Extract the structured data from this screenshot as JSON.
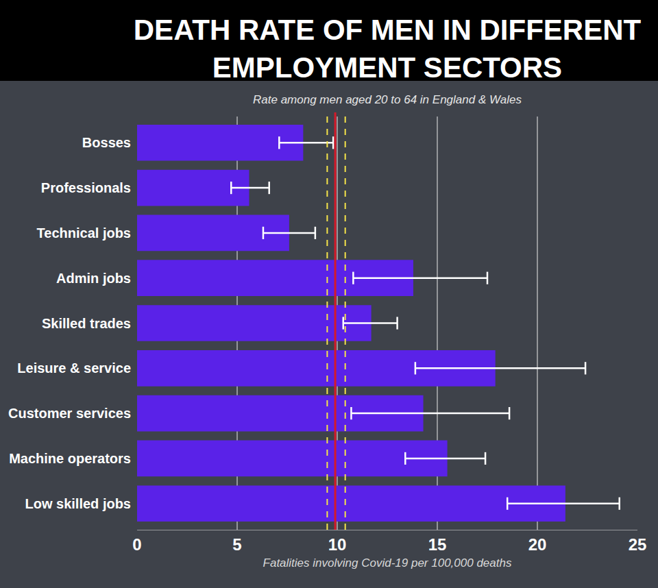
{
  "chart_data": {
    "type": "bar",
    "title": "DEATH RATE OF MEN IN DIFFERENT\nEMPLOYMENT SECTORS",
    "subtitle": "Rate among men aged 20 to 64 in England & Wales",
    "x_label": "Fatalities involving Covid-19 per 100,000 deaths",
    "orientation": "horizontal",
    "categories": [
      "Bosses",
      "Professionals",
      "Technical jobs",
      "Admin jobs",
      "Skilled trades",
      "Leisure & service",
      "Customer services",
      "Machine operators",
      "Low skilled jobs"
    ],
    "values": [
      8.3,
      5.6,
      7.6,
      13.8,
      11.7,
      17.9,
      14.3,
      15.5,
      21.4
    ],
    "ci_lower": [
      7.1,
      4.7,
      6.3,
      10.8,
      10.3,
      13.9,
      10.7,
      13.4,
      18.5
    ],
    "ci_upper": [
      9.8,
      6.6,
      8.9,
      17.5,
      13.0,
      22.4,
      18.6,
      17.4,
      24.1
    ],
    "color": "#5a22e8",
    "reference_line": {
      "value": 9.9,
      "ci_lower": 9.5,
      "ci_upper": 10.4
    },
    "xlim": [
      0,
      25
    ],
    "xticks": [
      0,
      5,
      10,
      15,
      20,
      25
    ],
    "grid": true
  }
}
